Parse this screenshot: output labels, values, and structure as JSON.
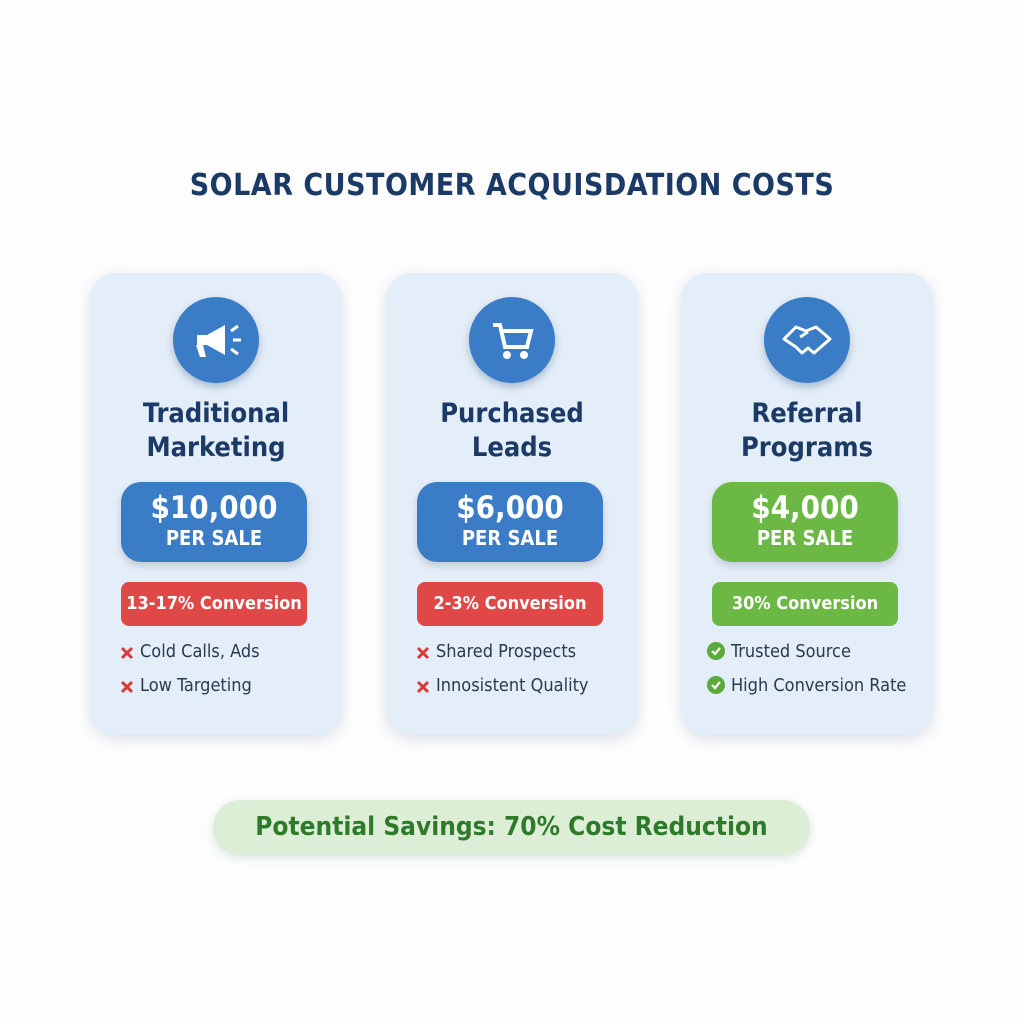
{
  "title": "SOLAR CUSTOMER ACQUISDATION COSTS",
  "cards": [
    {
      "title": "Traditional Marketing",
      "price": "$10,000",
      "price_unit": "PER SALE",
      "conversion": "13-17% Conversion",
      "bullets": [
        "Cold Calls, Ads",
        "Low Targeting"
      ]
    },
    {
      "title": "Purchased Leads",
      "price": "$6,000",
      "price_unit": "PER SALE",
      "conversion": "2-3% Conversion",
      "bullets": [
        "Shared Prospects",
        "Innosistent Quality"
      ]
    },
    {
      "title": "Referral Programs",
      "price": "$4,000",
      "price_unit": "PER SALE",
      "conversion": "30% Conversion",
      "bullets": [
        "Trusted Source",
        "High Conversion Rate"
      ]
    }
  ],
  "savings": "Potential Savings: 70% Cost Reduction"
}
